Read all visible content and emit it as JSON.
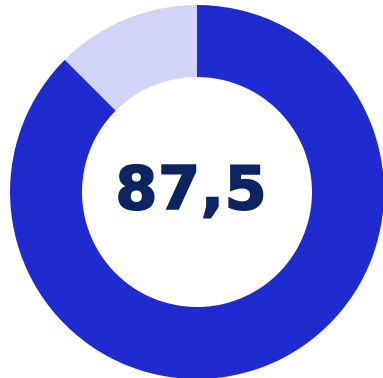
{
  "chart_data": {
    "type": "pie",
    "style": "donut",
    "center_label": "87,5",
    "slices": [
      {
        "value": 87.5,
        "color": "#1f2bcf"
      },
      {
        "value": 12.5,
        "color": "#d2d4f7"
      }
    ],
    "start": "top",
    "direction": "clockwise",
    "center_label_color": "#0d2462"
  }
}
